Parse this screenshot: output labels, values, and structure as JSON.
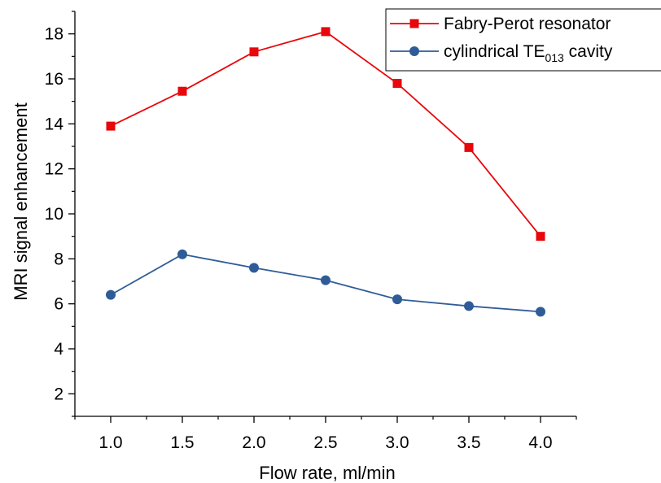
{
  "chart_data": {
    "type": "line",
    "xlabel": "Flow rate, ml/min",
    "ylabel": "MRI signal enhancement",
    "x": [
      1.0,
      1.5,
      2.0,
      2.5,
      3.0,
      3.5,
      4.0
    ],
    "xticks": [
      "1.0",
      "1.5",
      "2.0",
      "2.5",
      "3.0",
      "3.5",
      "4.0"
    ],
    "xlim": [
      0.75,
      4.25
    ],
    "yticks": [
      "2",
      "4",
      "6",
      "8",
      "10",
      "12",
      "14",
      "16",
      "18"
    ],
    "ylim": [
      1,
      19
    ],
    "grid": false,
    "legend_position": "top-right",
    "series": [
      {
        "name": "Fabry-Perot resonator",
        "color": "#e8070b",
        "marker": "square",
        "values": [
          13.9,
          15.45,
          17.2,
          18.1,
          15.8,
          12.95,
          9.0
        ]
      },
      {
        "name": "cylindrical TE",
        "name_subscript": "013",
        "name_suffix": " cavity",
        "color": "#2f5c98",
        "marker": "circle",
        "values": [
          6.4,
          8.2,
          7.6,
          7.05,
          6.2,
          5.9,
          5.65
        ]
      }
    ]
  }
}
